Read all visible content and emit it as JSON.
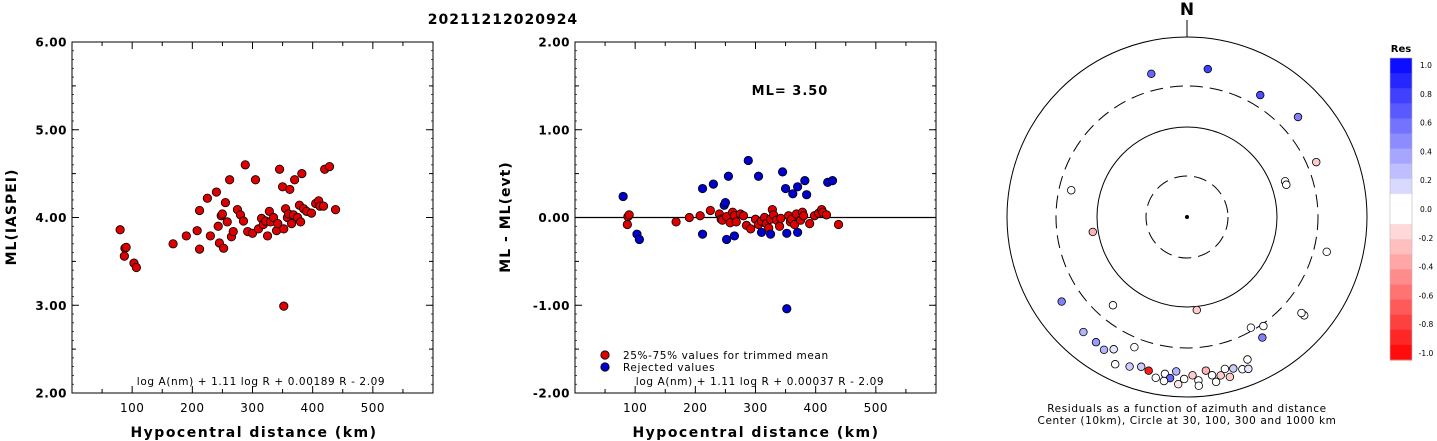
{
  "figure_title": "20211212020924",
  "chart_data": [
    {
      "type": "scatter",
      "xlabel": "Hypocentral distance (km)",
      "ylabel": "ML(IASPEI)",
      "xlim": [
        0,
        600
      ],
      "ylim": [
        2.0,
        6.0
      ],
      "xticks": [
        "100",
        "200",
        "300",
        "400",
        "500"
      ],
      "yticks": [
        "2.00",
        "3.00",
        "4.00",
        "5.00",
        "6.00"
      ],
      "formula": "log A(nm) + 1.11 log R + 0.00189 R - 2.09",
      "marker_color": "#dd0000",
      "points": [
        [
          80,
          3.86
        ],
        [
          88,
          3.65
        ],
        [
          90,
          3.66
        ],
        [
          87,
          3.56
        ],
        [
          103,
          3.48
        ],
        [
          107,
          3.43
        ],
        [
          168,
          3.7
        ],
        [
          190,
          3.79
        ],
        [
          208,
          3.85
        ],
        [
          212,
          3.64
        ],
        [
          212,
          4.08
        ],
        [
          225,
          4.22
        ],
        [
          230,
          3.79
        ],
        [
          240,
          4.29
        ],
        [
          243,
          3.9
        ],
        [
          245,
          3.71
        ],
        [
          248,
          4.02
        ],
        [
          250,
          4.04
        ],
        [
          252,
          3.65
        ],
        [
          255,
          4.17
        ],
        [
          258,
          3.95
        ],
        [
          262,
          4.43
        ],
        [
          265,
          3.78
        ],
        [
          268,
          3.84
        ],
        [
          275,
          4.09
        ],
        [
          280,
          4.03
        ],
        [
          285,
          3.96
        ],
        [
          288,
          4.6
        ],
        [
          292,
          3.84
        ],
        [
          300,
          3.82
        ],
        [
          305,
          4.43
        ],
        [
          310,
          3.87
        ],
        [
          315,
          3.99
        ],
        [
          318,
          3.92
        ],
        [
          322,
          3.96
        ],
        [
          325,
          3.79
        ],
        [
          328,
          4.07
        ],
        [
          330,
          3.95
        ],
        [
          335,
          4.0
        ],
        [
          340,
          3.85
        ],
        [
          342,
          3.93
        ],
        [
          345,
          4.55
        ],
        [
          350,
          4.35
        ],
        [
          352,
          3.87
        ],
        [
          352,
          2.99
        ],
        [
          355,
          4.1
        ],
        [
          358,
          4.0
        ],
        [
          360,
          4.04
        ],
        [
          362,
          4.32
        ],
        [
          365,
          3.93
        ],
        [
          368,
          4.03
        ],
        [
          370,
          4.43
        ],
        [
          375,
          4.0
        ],
        [
          378,
          4.14
        ],
        [
          380,
          3.95
        ],
        [
          382,
          4.5
        ],
        [
          385,
          4.1
        ],
        [
          390,
          4.07
        ],
        [
          398,
          4.05
        ],
        [
          405,
          4.16
        ],
        [
          410,
          4.19
        ],
        [
          412,
          4.13
        ],
        [
          418,
          4.13
        ],
        [
          420,
          4.55
        ],
        [
          428,
          4.58
        ],
        [
          438,
          4.09
        ]
      ]
    },
    {
      "type": "scatter",
      "xlabel": "Hypocentral distance (km)",
      "ylabel": "ML - ML(evt)",
      "xlim": [
        0,
        600
      ],
      "ylim": [
        -2.0,
        2.0
      ],
      "xticks": [
        "100",
        "200",
        "300",
        "400",
        "500"
      ],
      "yticks": [
        "-2.00",
        "-1.00",
        "0.00",
        "1.00",
        "2.00"
      ],
      "annotation": "ML= 3.50",
      "formula": "log A(nm) + 1.11 log R + 0.00037 R - 2.09",
      "legend_position": "bottom-left",
      "series": [
        {
          "name": "25%-75% values for trimmed mean",
          "color": "#dd0000",
          "points": [
            [
              88,
              0.01
            ],
            [
              90,
              0.03
            ],
            [
              87,
              -0.08
            ],
            [
              168,
              -0.05
            ],
            [
              190,
              0.0
            ],
            [
              208,
              0.02
            ],
            [
              225,
              0.08
            ],
            [
              240,
              0.04
            ],
            [
              243,
              -0.02
            ],
            [
              245,
              -0.03
            ],
            [
              252,
              0.01
            ],
            [
              258,
              -0.06
            ],
            [
              262,
              0.06
            ],
            [
              265,
              0.02
            ],
            [
              268,
              -0.05
            ],
            [
              275,
              0.04
            ],
            [
              280,
              0.02
            ],
            [
              285,
              -0.09
            ],
            [
              292,
              -0.13
            ],
            [
              300,
              -0.02
            ],
            [
              305,
              -0.08
            ],
            [
              310,
              -0.04
            ],
            [
              315,
              0.0
            ],
            [
              318,
              -0.07
            ],
            [
              322,
              -0.12
            ],
            [
              325,
              -0.02
            ],
            [
              328,
              0.09
            ],
            [
              330,
              0.03
            ],
            [
              335,
              -0.03
            ],
            [
              340,
              -0.1
            ],
            [
              342,
              -0.01
            ],
            [
              355,
              0.02
            ],
            [
              358,
              -0.05
            ],
            [
              360,
              -0.02
            ],
            [
              365,
              -0.08
            ],
            [
              368,
              0.04
            ],
            [
              375,
              -0.03
            ],
            [
              378,
              0.06
            ],
            [
              380,
              0.02
            ],
            [
              390,
              -0.07
            ],
            [
              398,
              0.02
            ],
            [
              405,
              0.05
            ],
            [
              410,
              0.09
            ],
            [
              412,
              0.06
            ],
            [
              418,
              0.03
            ],
            [
              438,
              -0.08
            ]
          ]
        },
        {
          "name": "Rejected values",
          "color": "#0000cc",
          "points": [
            [
              80,
              0.24
            ],
            [
              103,
              -0.19
            ],
            [
              107,
              -0.25
            ],
            [
              212,
              -0.19
            ],
            [
              212,
              0.33
            ],
            [
              230,
              0.38
            ],
            [
              248,
              0.14
            ],
            [
              250,
              0.17
            ],
            [
              252,
              -0.25
            ],
            [
              255,
              0.47
            ],
            [
              265,
              -0.21
            ],
            [
              288,
              0.65
            ],
            [
              305,
              0.47
            ],
            [
              310,
              -0.17
            ],
            [
              325,
              -0.19
            ],
            [
              345,
              0.52
            ],
            [
              350,
              0.33
            ],
            [
              352,
              -0.18
            ],
            [
              352,
              -1.04
            ],
            [
              362,
              0.27
            ],
            [
              370,
              -0.17
            ],
            [
              370,
              0.35
            ],
            [
              382,
              0.42
            ],
            [
              385,
              0.26
            ],
            [
              420,
              0.4
            ],
            [
              428,
              0.42
            ]
          ]
        }
      ]
    }
  ],
  "residual_map": {
    "north_label": "N",
    "caption_line1": "Residuals as a function of azimuth and distance",
    "caption_line2": "Center (10km), Circle at 30, 100, 300 and 1000 km",
    "colorbar_title": "Res",
    "colorbar_ticks": [
      "1.0",
      "0.8",
      "0.6",
      "0.4",
      "0.2",
      "0.0",
      "-0.2",
      "-0.4",
      "-0.6",
      "-0.8",
      "-1.0"
    ],
    "stations": [
      {
        "az": 346,
        "r": 0.82,
        "res": 0.6
      },
      {
        "az": 8,
        "r": 0.83,
        "res": 0.75
      },
      {
        "az": 31,
        "r": 0.79,
        "res": 0.7
      },
      {
        "az": 48,
        "r": 0.83,
        "res": 0.5
      },
      {
        "az": 67,
        "r": 0.78,
        "res": -0.2
      },
      {
        "az": 70,
        "r": 0.58,
        "res": 0.0
      },
      {
        "az": 72,
        "r": 0.58,
        "res": 0.0
      },
      {
        "az": 104,
        "r": 0.8,
        "res": 0.0
      },
      {
        "az": 130,
        "r": 0.85,
        "res": 0.0
      },
      {
        "az": 130,
        "r": 0.83,
        "res": 0.0
      },
      {
        "az": 283,
        "r": 0.66,
        "res": 0.0
      },
      {
        "az": 261,
        "r": 0.53,
        "res": -0.3
      },
      {
        "az": 220,
        "r": 0.64,
        "res": 0.0
      },
      {
        "az": 174,
        "r": 0.52,
        "res": -0.2
      },
      {
        "az": 236,
        "r": 0.84,
        "res": 0.5
      },
      {
        "az": 150,
        "r": 0.71,
        "res": 0.0
      },
      {
        "az": 148,
        "r": 0.79,
        "res": 0.5
      },
      {
        "az": 145,
        "r": 0.74,
        "res": 0.0
      },
      {
        "az": 222,
        "r": 0.86,
        "res": 0.3
      },
      {
        "az": 216,
        "r": 0.86,
        "res": 0.4
      },
      {
        "az": 212,
        "r": 0.87,
        "res": 0.3
      },
      {
        "az": 209,
        "r": 0.84,
        "res": 0.1
      },
      {
        "az": 202,
        "r": 0.78,
        "res": 0.0
      },
      {
        "az": 197,
        "r": 0.87,
        "res": 0.2
      },
      {
        "az": 194,
        "r": 0.88,
        "res": -0.9
      },
      {
        "az": 191,
        "r": 0.91,
        "res": 0.0
      },
      {
        "az": 188,
        "r": 0.88,
        "res": 0.0
      },
      {
        "az": 186,
        "r": 0.9,
        "res": 0.6
      },
      {
        "az": 184,
        "r": 0.86,
        "res": 0.3
      },
      {
        "az": 181,
        "r": 0.9,
        "res": 0.0
      },
      {
        "az": 178,
        "r": 0.88,
        "res": -0.2
      },
      {
        "az": 176,
        "r": 0.91,
        "res": 0.0
      },
      {
        "az": 173,
        "r": 0.86,
        "res": -0.3
      },
      {
        "az": 171,
        "r": 0.89,
        "res": 0.0
      },
      {
        "az": 168,
        "r": 0.9,
        "res": -0.2
      },
      {
        "az": 166,
        "r": 0.87,
        "res": 0.0
      },
      {
        "az": 163,
        "r": 0.88,
        "res": 0.2
      },
      {
        "az": 160,
        "r": 0.9,
        "res": 0.0
      },
      {
        "az": 157,
        "r": 0.86,
        "res": 0.0
      },
      {
        "az": 188,
        "r": 0.92,
        "res": 0.0
      },
      {
        "az": 183,
        "r": 0.93,
        "res": -0.1
      },
      {
        "az": 176,
        "r": 0.94,
        "res": 0.0
      },
      {
        "az": 201,
        "r": 0.89,
        "res": 0.2
      },
      {
        "az": 170,
        "r": 0.93,
        "res": 0.0
      },
      {
        "az": 165,
        "r": 0.92,
        "res": -0.2
      },
      {
        "az": 158,
        "r": 0.91,
        "res": 0.1
      },
      {
        "az": 206,
        "r": 0.91,
        "res": 0.0
      }
    ]
  }
}
